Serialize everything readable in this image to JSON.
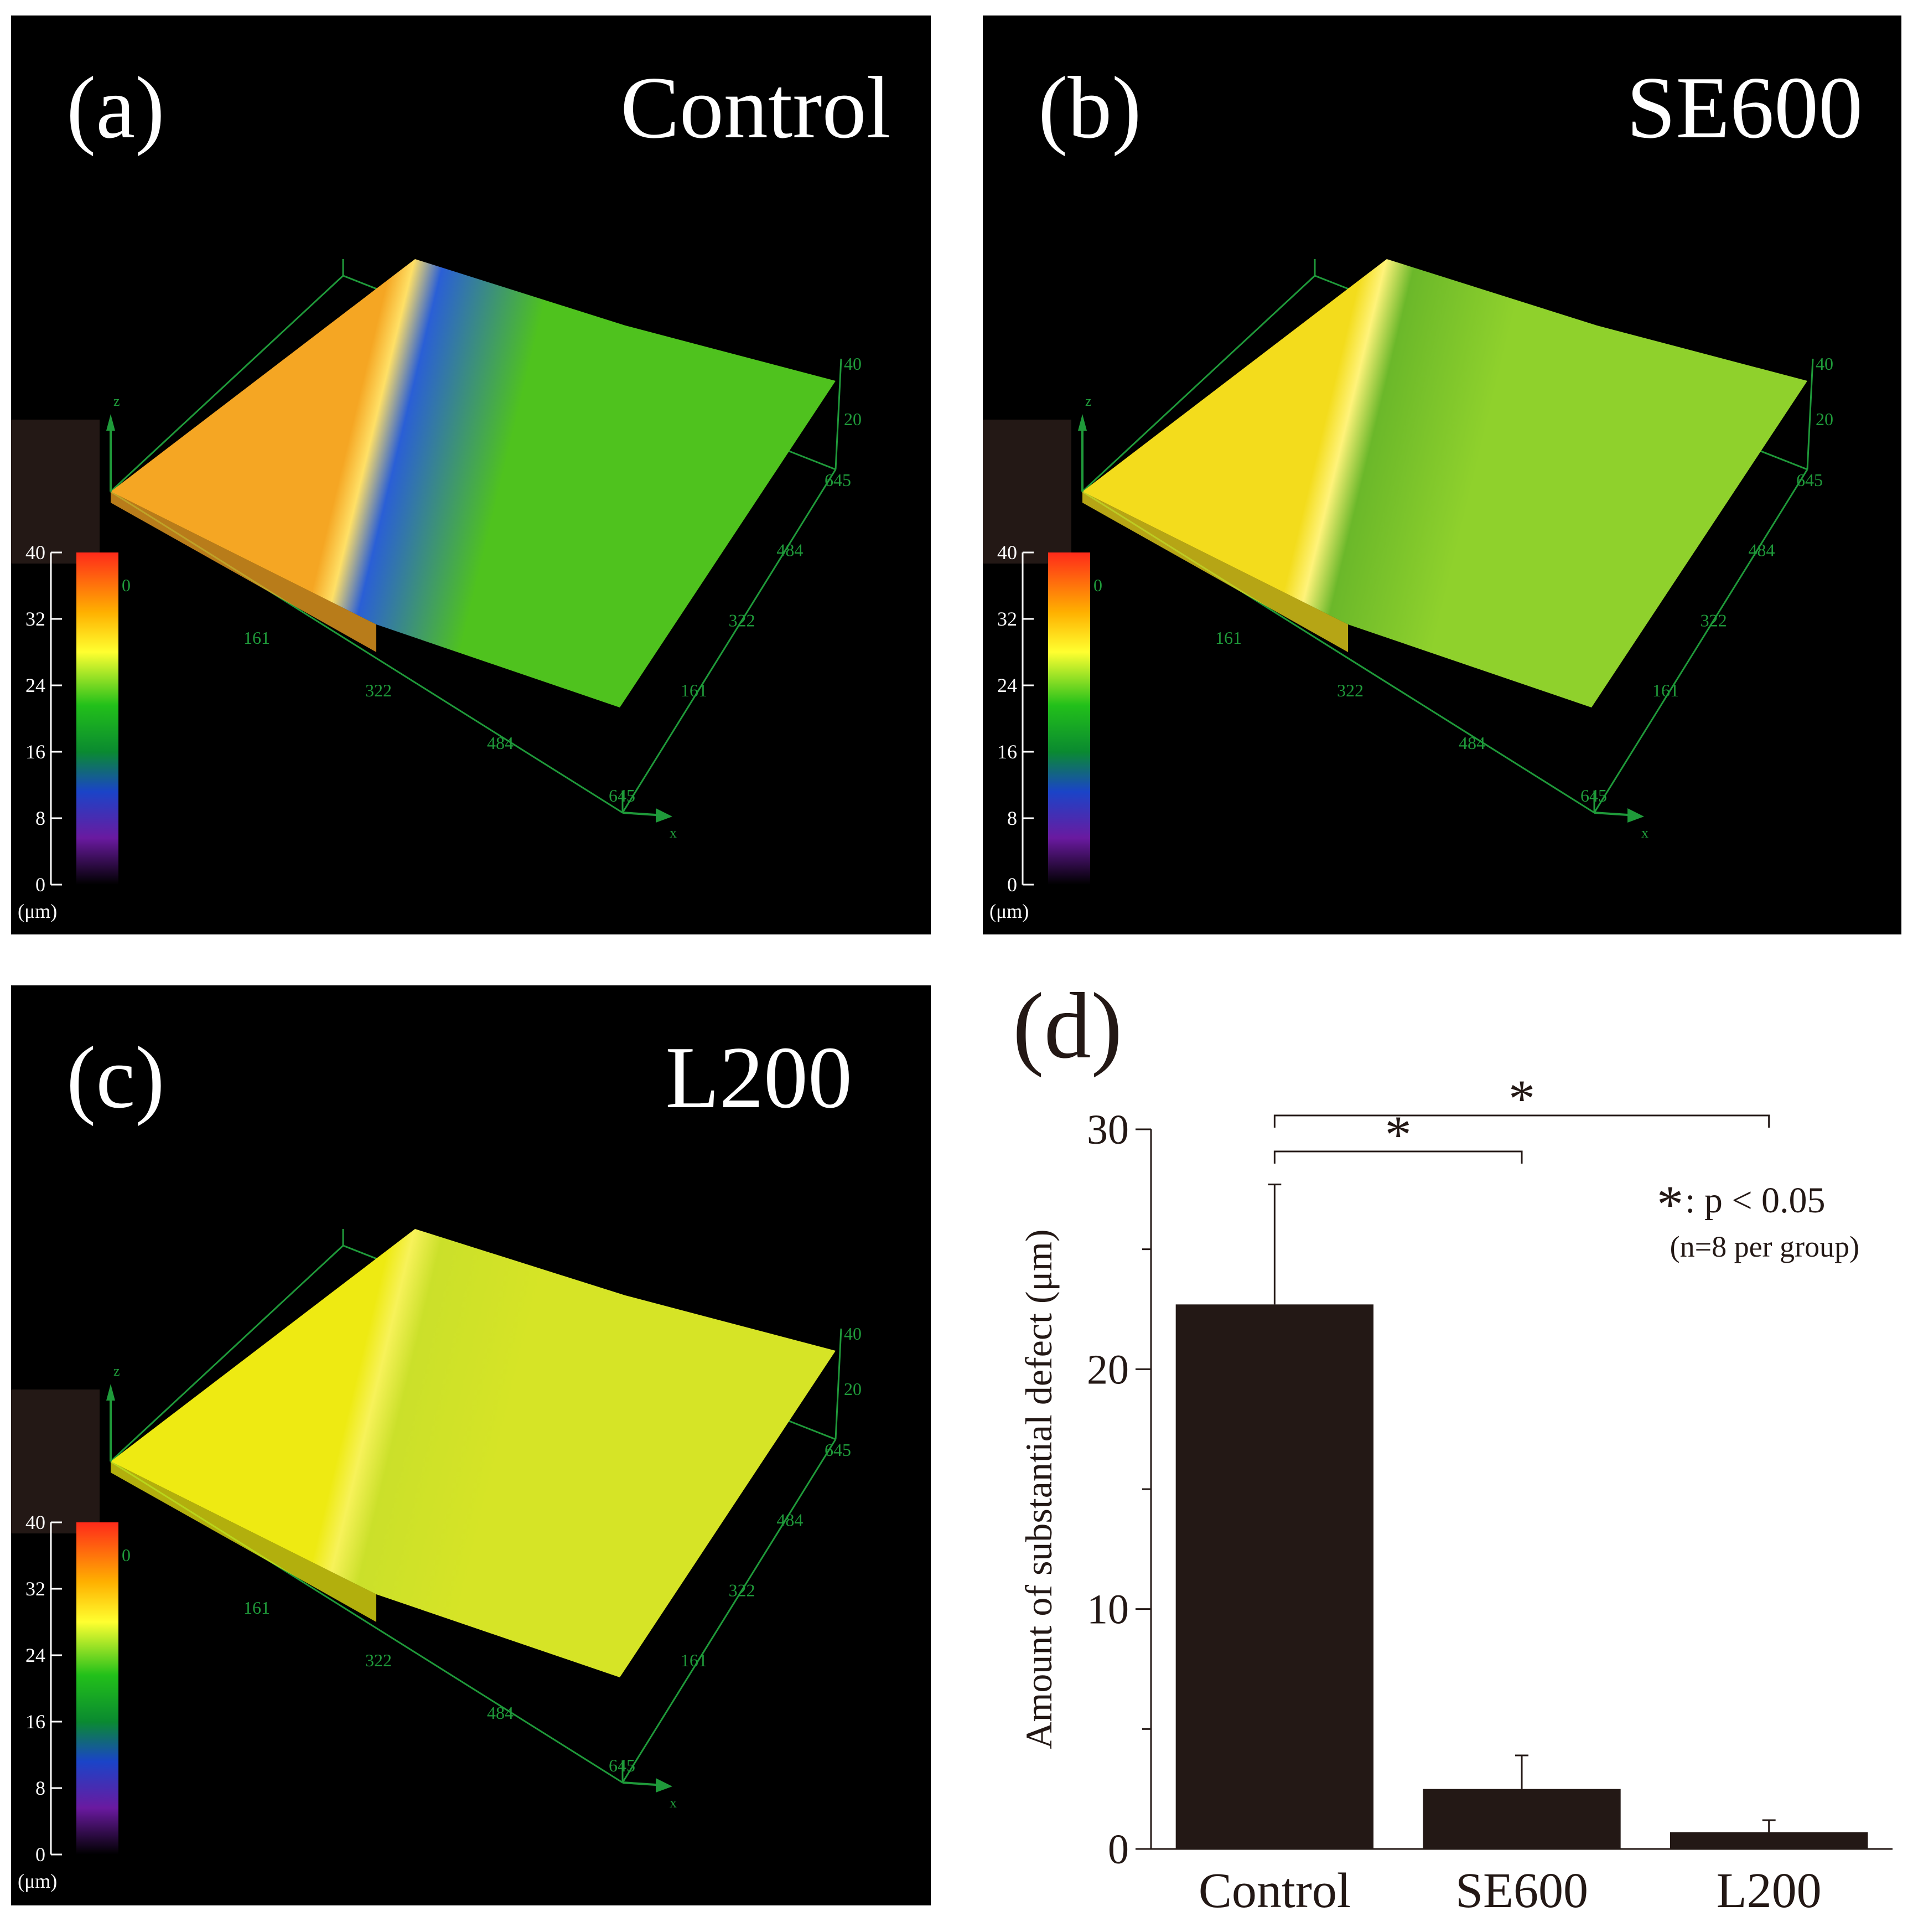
{
  "panels": [
    {
      "id": "a",
      "letter": "(a)",
      "label": "Control",
      "colorbar": {
        "ticks": [
          "40",
          "32",
          "24",
          "16",
          "8",
          "0"
        ],
        "unit": "(μm)"
      },
      "axis_x_ticks": [
        "0",
        "161",
        "322",
        "484",
        "645"
      ],
      "axis_y_ticks": [
        "161",
        "322",
        "484",
        "645"
      ],
      "axis_z_ticks": [
        "20",
        "40"
      ],
      "axis_names": {
        "x": "x",
        "z": "z"
      },
      "colors": {
        "high_region": "#f5a623",
        "low_region": "#4fc21e",
        "defect_trough": "#2a5fd6",
        "wall_edge": "#ffe066"
      }
    },
    {
      "id": "b",
      "letter": "(b)",
      "label": "SE600",
      "colorbar": {
        "ticks": [
          "40",
          "32",
          "24",
          "16",
          "8",
          "0"
        ],
        "unit": "(μm)"
      },
      "axis_x_ticks": [
        "0",
        "161",
        "322",
        "484",
        "645"
      ],
      "axis_y_ticks": [
        "161",
        "322",
        "484",
        "645"
      ],
      "axis_z_ticks": [
        "20",
        "40"
      ],
      "axis_names": {
        "x": "x",
        "z": "z"
      },
      "colors": {
        "high_region": "#f3dc1c",
        "low_region": "#8fd12c",
        "defect_trough": "#6bb82a",
        "wall_edge": "#fff37a"
      }
    },
    {
      "id": "c",
      "letter": "(c)",
      "label": "L200",
      "colorbar": {
        "ticks": [
          "40",
          "32",
          "24",
          "16",
          "8",
          "0"
        ],
        "unit": "(μm)"
      },
      "axis_x_ticks": [
        "0",
        "161",
        "322",
        "484",
        "645"
      ],
      "axis_y_ticks": [
        "161",
        "322",
        "484",
        "645"
      ],
      "axis_z_ticks": [
        "20",
        "40"
      ],
      "axis_names": {
        "x": "x",
        "z": "z"
      },
      "colors": {
        "high_region": "#eeea12",
        "low_region": "#d6e426",
        "defect_trough": "#cbe02a",
        "wall_edge": "#f7f25a"
      }
    }
  ],
  "chart_data": {
    "type": "bar",
    "panel_letter": "(d)",
    "categories": [
      "Control",
      "SE600",
      "L200"
    ],
    "values": [
      22.7,
      2.5,
      0.7
    ],
    "error": [
      5.0,
      1.4,
      0.5
    ],
    "ylabel": "Amount of substantial defect (μm)",
    "xlabel": "",
    "ylim": [
      0,
      30
    ],
    "yticks": [
      "0",
      "10",
      "20",
      "30"
    ],
    "bar_color": "#231815",
    "significance": [
      {
        "from": "Control",
        "to": "SE600",
        "mark": "*"
      },
      {
        "from": "Control",
        "to": "L200",
        "mark": "*"
      }
    ],
    "legend_note": {
      "symbol": "*",
      "text": ": p < 0.05",
      "subtext": "(n=8 per group)"
    }
  }
}
